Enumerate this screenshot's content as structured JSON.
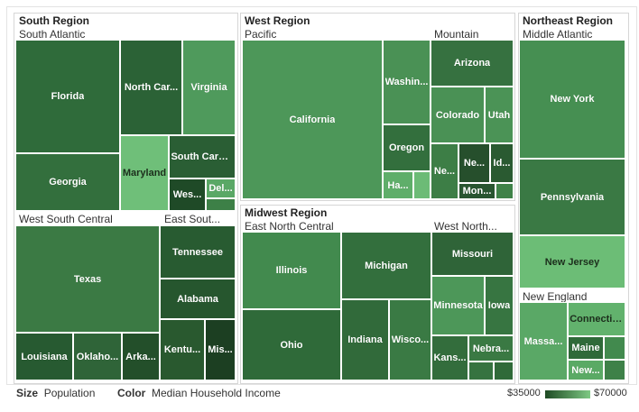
{
  "chart_data": {
    "type": "treemap",
    "size_measure": "Population",
    "color_measure": "Median Household Income",
    "color_range": {
      "min_label": "$35000",
      "max_label": "$70000",
      "low": 35000,
      "high": 70000
    },
    "footer": {
      "size_key": "Size",
      "size_value": "Population",
      "color_key": "Color",
      "color_value": "Median Household Income"
    },
    "regions": [
      {
        "name": "South Region",
        "divisions": [
          {
            "name": "South Atlantic",
            "states": [
              {
                "label": "Florida",
                "income": 47000,
                "color": "#2f6b3a"
              },
              {
                "label": "Georgia",
                "income": 49000,
                "color": "#336f3d"
              },
              {
                "label": "North Car...",
                "income": 46000,
                "color": "#2b6236"
              },
              {
                "label": "Virginia",
                "income": 62000,
                "color": "#4f9a5c"
              },
              {
                "label": "Maryland",
                "income": 70000,
                "color": "#6fbf79"
              },
              {
                "label": "South Carol...",
                "income": 44000,
                "color": "#2a5e34"
              },
              {
                "label": "Wes...",
                "income": 39000,
                "color": "#1f4a27"
              },
              {
                "label": "Del...",
                "income": 58000,
                "color": "#5aa866"
              },
              {
                "label": "",
                "income": 52000,
                "color": "#3d8047"
              }
            ]
          },
          {
            "name": "West South Central",
            "states": [
              {
                "label": "Texas",
                "income": 51000,
                "color": "#3b7a44"
              },
              {
                "label": "Louisiana",
                "income": 42000,
                "color": "#275a31"
              },
              {
                "label": "Oklaho...",
                "income": 45000,
                "color": "#2f6438"
              },
              {
                "label": "Arka...",
                "income": 40000,
                "color": "#234f2a"
              }
            ]
          },
          {
            "name": "East Sout...",
            "states": [
              {
                "label": "Tennessee",
                "income": 43000,
                "color": "#285b31"
              },
              {
                "label": "Alabama",
                "income": 42000,
                "color": "#26562e"
              },
              {
                "label": "Kentu...",
                "income": 42000,
                "color": "#29592f"
              },
              {
                "label": "Mis...",
                "income": 37000,
                "color": "#1c3f22"
              }
            ]
          }
        ]
      },
      {
        "name": "West Region",
        "divisions": [
          {
            "name": "Pacific",
            "states": [
              {
                "label": "California",
                "income": 60000,
                "color": "#4d9759"
              },
              {
                "label": "Washin...",
                "income": 58000,
                "color": "#4a9155"
              },
              {
                "label": "Oregon",
                "income": 49000,
                "color": "#336f3d"
              },
              {
                "label": "Ha...",
                "income": 66000,
                "color": "#5fae6a"
              },
              {
                "label": "",
                "income": 68000,
                "color": "#6cbb76"
              }
            ]
          },
          {
            "name": "Mountain",
            "states": [
              {
                "label": "Arizona",
                "income": 48000,
                "color": "#367140"
              },
              {
                "label": "Colorado",
                "income": 56000,
                "color": "#4a9155"
              },
              {
                "label": "Utah",
                "income": 58000,
                "color": "#4b9356"
              },
              {
                "label": "Ne...",
                "income": 51000,
                "color": "#3d7e46"
              },
              {
                "label": "Ne...",
                "income": 43000,
                "color": "#264f2c"
              },
              {
                "label": "Id...",
                "income": 45000,
                "color": "#2a5a31"
              },
              {
                "label": "Mon...",
                "income": 44000,
                "color": "#285530"
              },
              {
                "label": "",
                "income": 55000,
                "color": "#3f8248"
              }
            ]
          }
        ]
      },
      {
        "name": "Midwest Region",
        "divisions": [
          {
            "name": "East North Central",
            "states": [
              {
                "label": "Illinois",
                "income": 55000,
                "color": "#428a4e"
              },
              {
                "label": "Ohio",
                "income": 46000,
                "color": "#2f6a39"
              },
              {
                "label": "Michigan",
                "income": 48000,
                "color": "#336f3d"
              },
              {
                "label": "Indiana",
                "income": 46000,
                "color": "#316a3a"
              },
              {
                "label": "Wisco...",
                "income": 51000,
                "color": "#3a7a44"
              }
            ]
          },
          {
            "name": "West North...",
            "states": [
              {
                "label": "Missouri",
                "income": 45000,
                "color": "#2f6438"
              },
              {
                "label": "Minnesota",
                "income": 58000,
                "color": "#4d9759"
              },
              {
                "label": "Iowa",
                "income": 50000,
                "color": "#377541"
              },
              {
                "label": "Kans...",
                "income": 49000,
                "color": "#336d3c"
              },
              {
                "label": "Nebra...",
                "income": 51000,
                "color": "#3a7943"
              },
              {
                "label": "",
                "income": 50000,
                "color": "#367340"
              },
              {
                "label": "",
                "income": 48000,
                "color": "#306a39"
              }
            ]
          }
        ]
      },
      {
        "name": "Northeast Region",
        "divisions": [
          {
            "name": "Middle Atlantic",
            "states": [
              {
                "label": "New York",
                "income": 56000,
                "color": "#468f52"
              },
              {
                "label": "Pennsylvania",
                "income": 51000,
                "color": "#3a7944"
              },
              {
                "label": "New Jersey",
                "income": 68000,
                "color": "#6cbd76"
              }
            ]
          },
          {
            "name": "New England",
            "states": [
              {
                "label": "Massa...",
                "income": 65000,
                "color": "#5aa866"
              },
              {
                "label": "Connecticut",
                "income": 67000,
                "color": "#62b26d"
              },
              {
                "label": "Maine",
                "income": 47000,
                "color": "#2f6a39"
              },
              {
                "label": "",
                "income": 54000,
                "color": "#428a4e"
              },
              {
                "label": "New...",
                "income": 63000,
                "color": "#5aaa65"
              },
              {
                "label": "",
                "income": 53000,
                "color": "#3e8148"
              }
            ]
          }
        ]
      }
    ]
  }
}
